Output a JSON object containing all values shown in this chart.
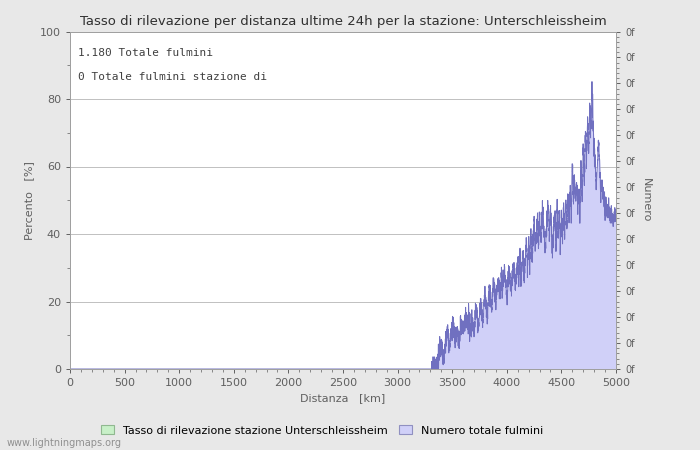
{
  "title": "Tasso di rilevazione per distanza ultime 24h per la stazione: Unterschleissheim",
  "xlabel": "Distanza   [km]",
  "ylabel_left": "Percento   [%]",
  "ylabel_right": "Numero",
  "annotation_line1": "1.180 Totale fulmini",
  "annotation_line2": "0 Totale fulmini stazione di",
  "xlim": [
    0,
    5000
  ],
  "ylim": [
    0,
    100
  ],
  "xticks": [
    0,
    500,
    1000,
    1500,
    2000,
    2500,
    3000,
    3500,
    4000,
    4500,
    5000
  ],
  "yticks_left": [
    0,
    20,
    40,
    60,
    80,
    100
  ],
  "legend_label_green": "Tasso di rilevazione stazione Unterschleissheim",
  "legend_label_blue": "Numero totale fulmini",
  "watermark": "www.lightningmaps.org",
  "bg_color": "#e8e8e8",
  "plot_bg_color": "#ffffff",
  "fill_color_blue": "#d0d0f8",
  "line_color_blue": "#7070c0",
  "fill_color_green": "#c8f0c8",
  "line_color_green": "#80b880",
  "grid_color": "#c0c0c0",
  "tick_color": "#606060",
  "text_color": "#404040",
  "title_color": "#303030",
  "right_ytick_num": 14
}
